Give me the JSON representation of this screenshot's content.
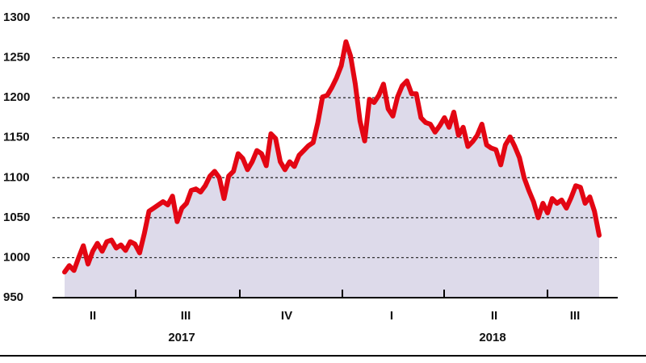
{
  "chart_data": {
    "type": "line",
    "ylim": [
      950,
      1300
    ],
    "yticks": [
      950,
      1000,
      1050,
      1100,
      1150,
      1200,
      1250,
      1300
    ],
    "grid": true,
    "quarters": [
      "II",
      "III",
      "IV",
      "I",
      "II",
      "III"
    ],
    "years": [
      "2017",
      "2018"
    ],
    "series": [
      {
        "color": "#e30613",
        "fill": "#dddaea",
        "values": [
          982,
          990,
          984,
          1000,
          1015,
          992,
          1008,
          1018,
          1008,
          1020,
          1022,
          1012,
          1016,
          1009,
          1020,
          1017,
          1006,
          1030,
          1058,
          1062,
          1066,
          1070,
          1066,
          1077,
          1045,
          1062,
          1068,
          1084,
          1086,
          1082,
          1090,
          1102,
          1108,
          1100,
          1074,
          1102,
          1108,
          1130,
          1124,
          1110,
          1120,
          1134,
          1130,
          1115,
          1155,
          1149,
          1120,
          1110,
          1120,
          1114,
          1128,
          1134,
          1140,
          1144,
          1169,
          1201,
          1203,
          1213,
          1225,
          1240,
          1270,
          1252,
          1217,
          1171,
          1146,
          1198,
          1194,
          1203,
          1217,
          1186,
          1177,
          1201,
          1215,
          1221,
          1205,
          1205,
          1175,
          1169,
          1167,
          1157,
          1165,
          1175,
          1163,
          1182,
          1153,
          1163,
          1139,
          1145,
          1153,
          1167,
          1141,
          1137,
          1135,
          1116,
          1141,
          1151,
          1139,
          1125,
          1100,
          1084,
          1070,
          1050,
          1068,
          1056,
          1074,
          1068,
          1072,
          1062,
          1075,
          1090,
          1088,
          1068,
          1076,
          1058,
          1028
        ]
      }
    ]
  }
}
